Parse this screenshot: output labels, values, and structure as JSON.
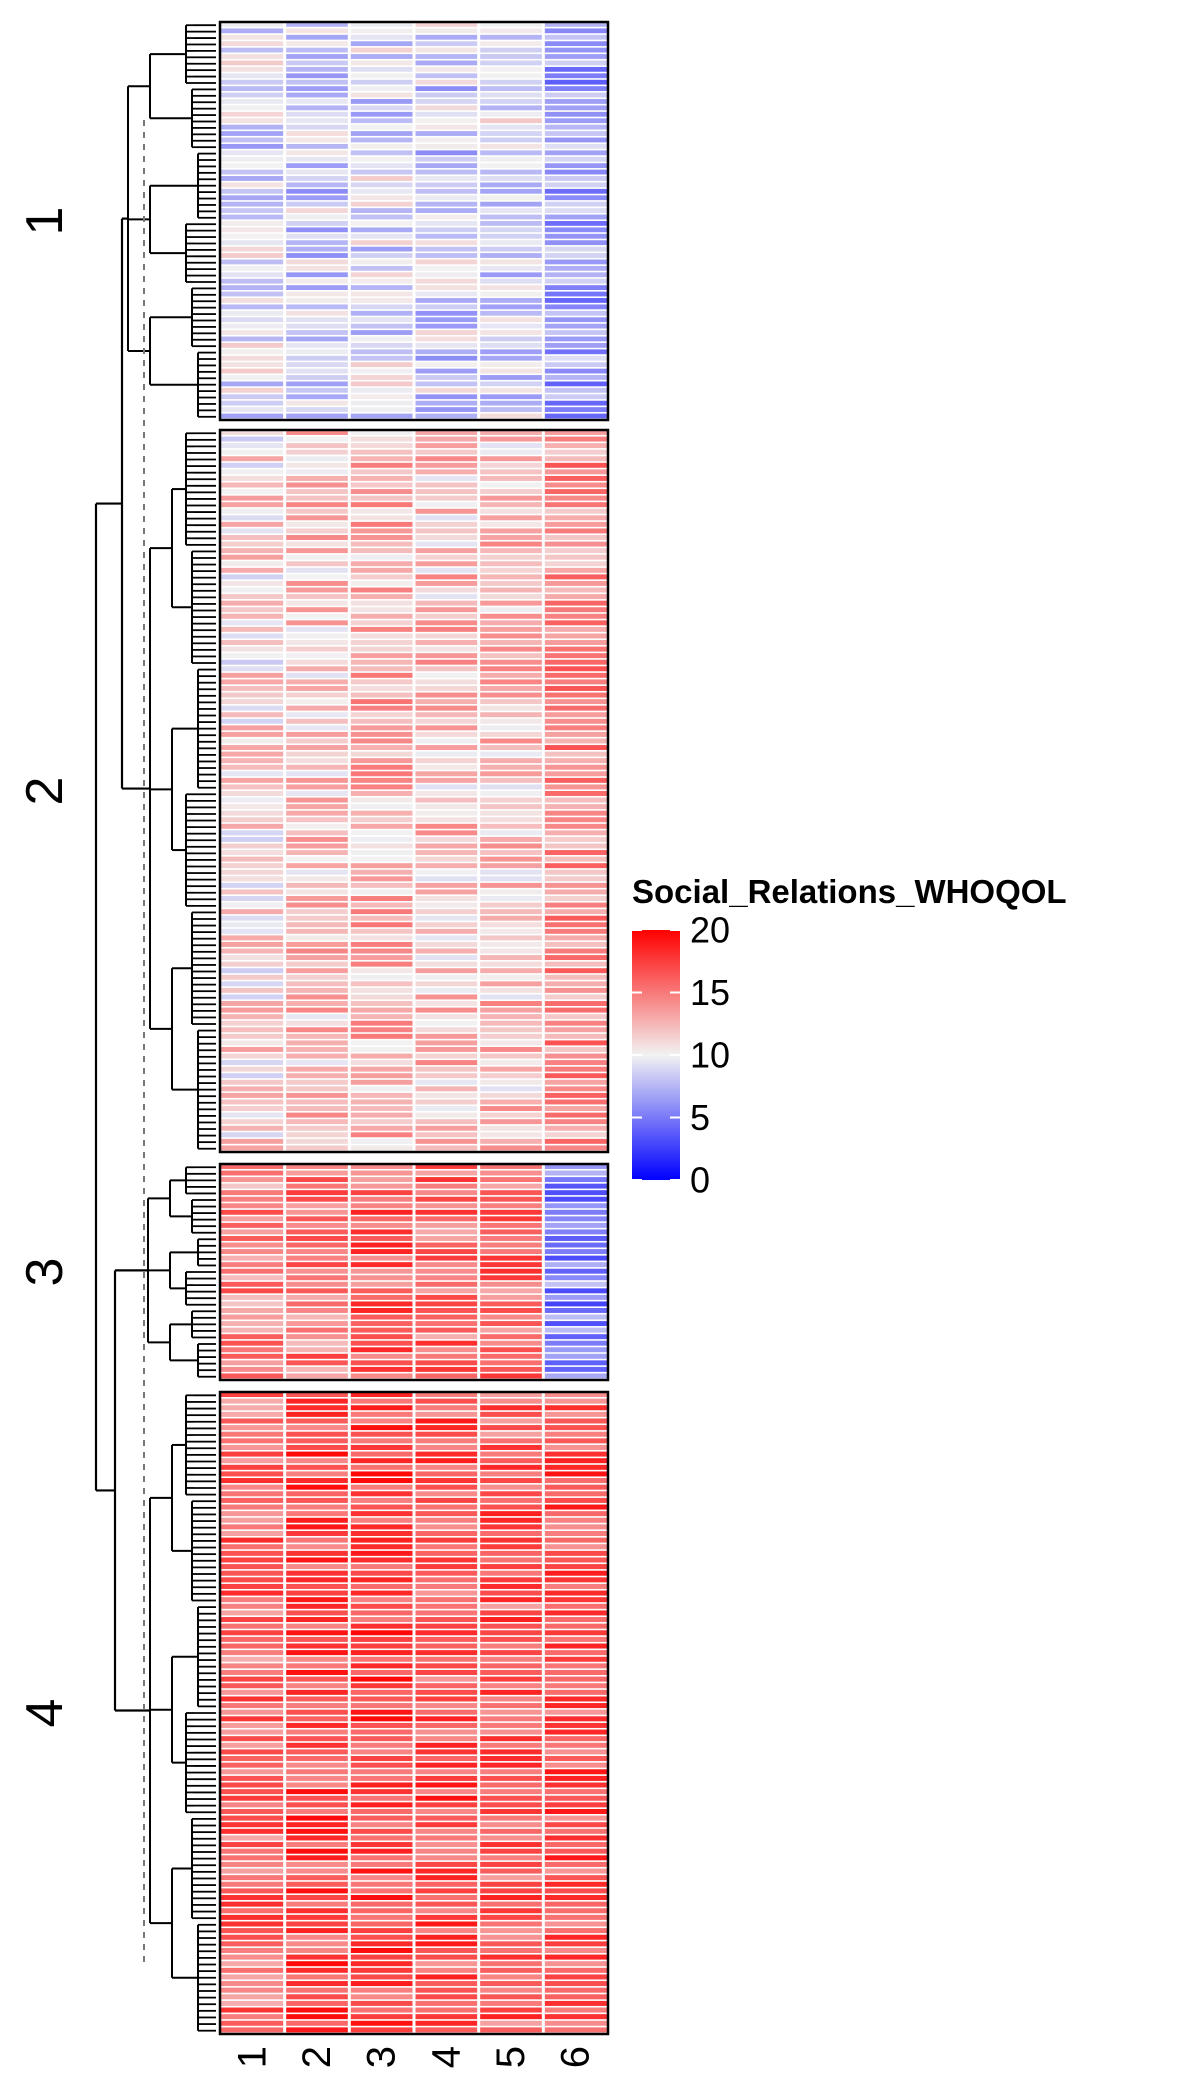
{
  "chart_data": {
    "type": "heatmap",
    "title": "",
    "xlabel": "",
    "ylabel": "",
    "columns": [
      "1",
      "2",
      "3",
      "4",
      "5",
      "6"
    ],
    "row_split_labels": [
      "1",
      "2",
      "3",
      "4"
    ],
    "row_dendrogram": true,
    "legend": {
      "title": "Social_Relations_WHOQOL",
      "ticks": [
        "20",
        "15",
        "10",
        "5",
        "0"
      ],
      "range": [
        0,
        20
      ],
      "colors": {
        "low": "#0000ff",
        "mid": "#f2f2f2",
        "high": "#ff0000"
      }
    },
    "clusters": [
      {
        "label": "1",
        "rows": 62,
        "column_means": [
          9.0,
          8.5,
          9.0,
          8.5,
          9.0,
          6.5
        ]
      },
      {
        "label": "2",
        "rows": 110,
        "column_means": [
          11.0,
          12.0,
          12.5,
          12.0,
          12.0,
          14.0
        ]
      },
      {
        "label": "3",
        "rows": 33,
        "column_means": [
          14.5,
          15.0,
          16.0,
          15.5,
          15.5,
          5.5
        ]
      },
      {
        "label": "4",
        "rows": 97,
        "column_means": [
          15.5,
          17.0,
          17.0,
          16.5,
          16.0,
          16.5
        ]
      }
    ]
  }
}
